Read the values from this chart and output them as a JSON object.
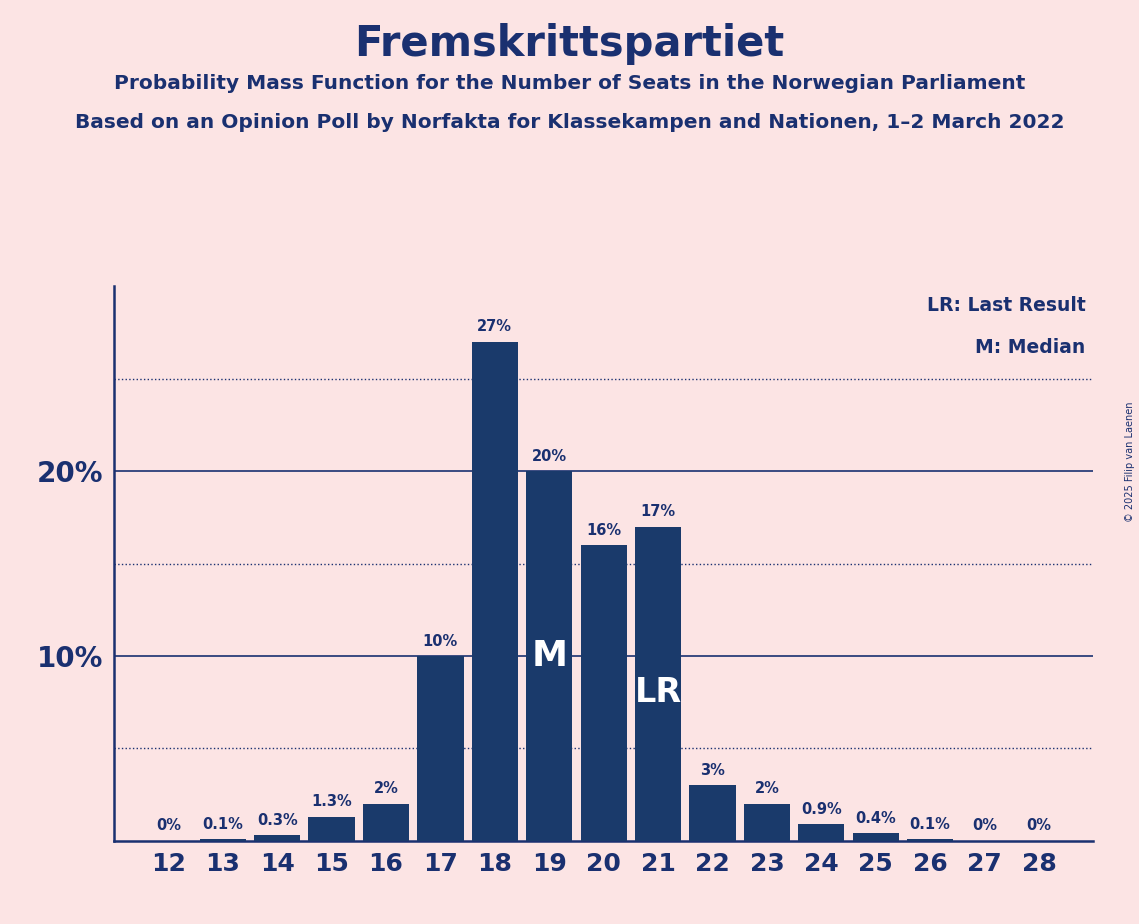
{
  "title": "Fremskrittspartiet",
  "subtitle1": "Probability Mass Function for the Number of Seats in the Norwegian Parliament",
  "subtitle2": "Based on an Opinion Poll by Norfakta for Klassekampen and Nationen, 1–2 March 2022",
  "copyright": "© 2025 Filip van Laenen",
  "seats": [
    12,
    13,
    14,
    15,
    16,
    17,
    18,
    19,
    20,
    21,
    22,
    23,
    24,
    25,
    26,
    27,
    28
  ],
  "probabilities": [
    0.0,
    0.1,
    0.3,
    1.3,
    2.0,
    10.0,
    27.0,
    20.0,
    16.0,
    17.0,
    3.0,
    2.0,
    0.9,
    0.4,
    0.1,
    0.0,
    0.0
  ],
  "bar_labels": [
    "0%",
    "0.1%",
    "0.3%",
    "1.3%",
    "2%",
    "10%",
    "27%",
    "20%",
    "16%",
    "17%",
    "3%",
    "2%",
    "0.9%",
    "0.4%",
    "0.1%",
    "0%",
    "0%"
  ],
  "bar_color": "#1a3a6b",
  "bg_color": "#fce4e4",
  "text_color": "#1a3070",
  "median_seat": 19,
  "last_result_seat": 21,
  "legend_lr": "LR: Last Result",
  "legend_m": "M: Median",
  "major_gridlines": [
    10,
    20
  ],
  "minor_gridlines": [
    5,
    15,
    25
  ],
  "ylim": [
    0,
    30
  ],
  "ytick_positions": [
    10,
    20
  ],
  "ytick_labels": [
    "10%",
    "20%"
  ]
}
